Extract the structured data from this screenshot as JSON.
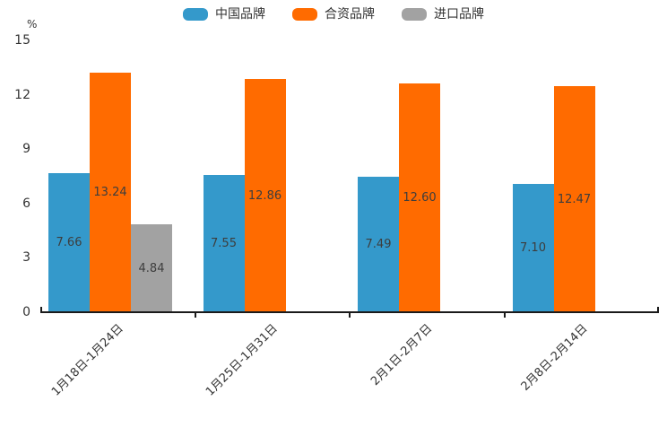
{
  "chart_data": {
    "type": "bar",
    "title": "",
    "unit_label": "%",
    "categories": [
      "1月18日-1月24日",
      "1月25日-1月31日",
      "2月1日-2月7日",
      "2月8日-2月14日"
    ],
    "series": [
      {
        "name": "中国品牌",
        "color": "#3499CB",
        "values": [
          7.66,
          7.55,
          7.49,
          7.1
        ]
      },
      {
        "name": "合资品牌",
        "color": "#FF6B00",
        "values": [
          13.24,
          12.86,
          12.6,
          12.47
        ]
      },
      {
        "name": "进口品牌",
        "color": "#A2A2A2",
        "values": [
          4.84,
          null,
          null,
          null
        ]
      }
    ],
    "ylim": [
      0,
      15
    ],
    "yticks": [
      0,
      3,
      6,
      9,
      12,
      15
    ],
    "legend_position": "top",
    "grid": false,
    "value_label_decimals": 2,
    "value_labels_inside_bars": true
  }
}
